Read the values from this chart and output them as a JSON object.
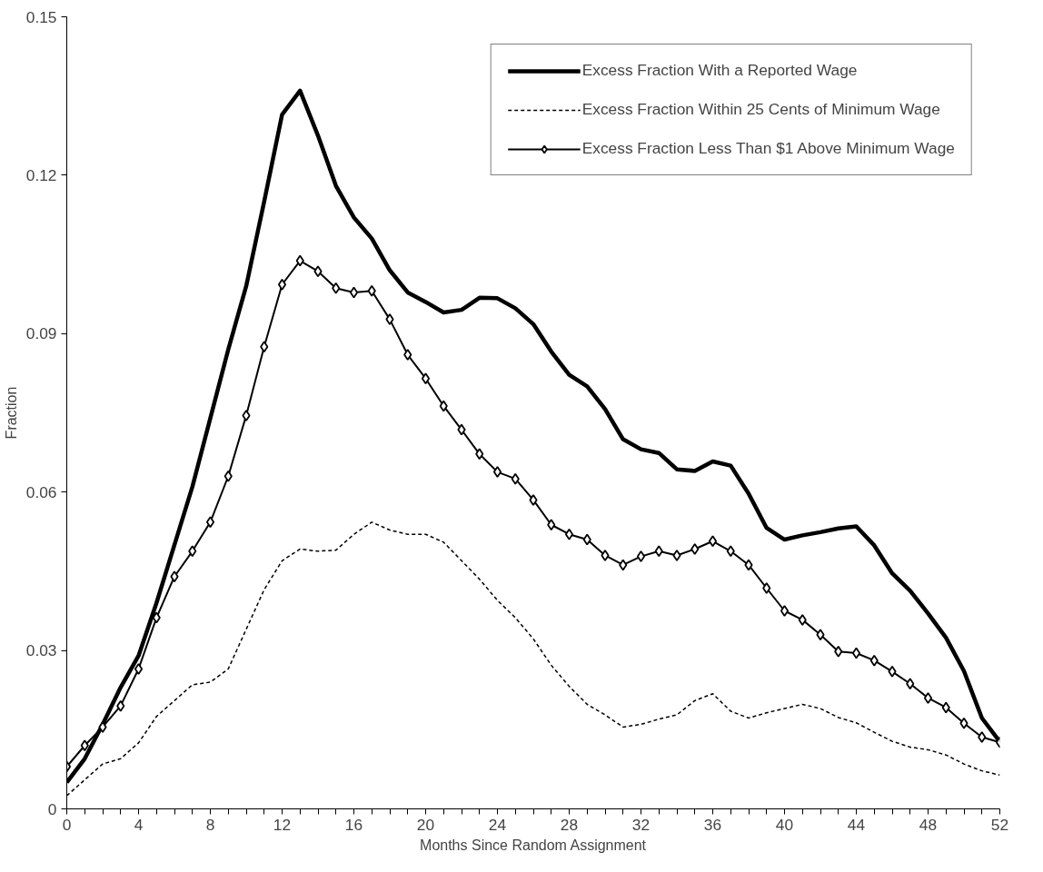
{
  "chart_data": {
    "type": "line",
    "xlabel": "Months Since Random Assignment",
    "ylabel": "Fraction",
    "x": [
      0,
      1,
      2,
      3,
      4,
      5,
      6,
      7,
      8,
      9,
      10,
      11,
      12,
      13,
      14,
      15,
      16,
      17,
      18,
      19,
      20,
      21,
      22,
      23,
      24,
      25,
      26,
      27,
      28,
      29,
      30,
      31,
      32,
      33,
      34,
      35,
      36,
      37,
      38,
      39,
      40,
      41,
      42,
      43,
      44,
      45,
      46,
      47,
      48,
      49,
      50,
      51,
      52
    ],
    "xlim": [
      0,
      52
    ],
    "xticks": [
      0,
      {
        "value": 1,
        "label": null
      },
      {
        "value": 2,
        "label": null
      },
      {
        "value": 3,
        "label": null
      },
      4,
      {
        "value": 5,
        "label": null
      },
      {
        "value": 6,
        "label": null
      },
      {
        "value": 7,
        "label": null
      },
      8,
      {
        "value": 9,
        "label": null
      },
      {
        "value": 10,
        "label": null
      },
      {
        "value": 11,
        "label": null
      },
      12,
      {
        "value": 13,
        "label": null
      },
      {
        "value": 14,
        "label": null
      },
      {
        "value": 15,
        "label": null
      },
      16,
      {
        "value": 17,
        "label": null
      },
      {
        "value": 18,
        "label": null
      },
      {
        "value": 19,
        "label": null
      },
      20,
      {
        "value": 21,
        "label": null
      },
      {
        "value": 22,
        "label": null
      },
      {
        "value": 23,
        "label": null
      },
      24,
      {
        "value": 25,
        "label": null
      },
      {
        "value": 26,
        "label": null
      },
      {
        "value": 27,
        "label": null
      },
      28,
      {
        "value": 29,
        "label": null
      },
      {
        "value": 30,
        "label": null
      },
      {
        "value": 31,
        "label": null
      },
      32,
      {
        "value": 33,
        "label": null
      },
      {
        "value": 34,
        "label": null
      },
      {
        "value": 35,
        "label": null
      },
      36,
      {
        "value": 37,
        "label": null
      },
      {
        "value": 38,
        "label": null
      },
      {
        "value": 39,
        "label": null
      },
      40,
      {
        "value": 41,
        "label": null
      },
      {
        "value": 42,
        "label": null
      },
      {
        "value": 43,
        "label": null
      },
      44,
      {
        "value": 45,
        "label": null
      },
      {
        "value": 46,
        "label": null
      },
      {
        "value": 47,
        "label": null
      },
      48,
      {
        "value": 49,
        "label": null
      },
      {
        "value": 50,
        "label": null
      },
      {
        "value": 51,
        "label": null
      },
      52
    ],
    "ylim": [
      0,
      0.15
    ],
    "yticks": [
      0,
      0.03,
      0.06,
      0.09,
      0.12,
      0.15
    ],
    "grid": false,
    "legend": "top right",
    "series": [
      {
        "name": "Excess Fraction With a Reported Wage",
        "color": "#000000",
        "line_style": "solid",
        "marker": "none",
        "values": [
          0.005,
          0.0095,
          0.016,
          0.023,
          0.029,
          0.039,
          0.05,
          0.061,
          0.074,
          0.087,
          0.099,
          0.115,
          0.1315,
          0.136,
          0.1275,
          0.118,
          0.112,
          0.108,
          0.102,
          0.0978,
          0.096,
          0.094,
          0.0945,
          0.0968,
          0.0967,
          0.0948,
          0.0918,
          0.0866,
          0.0822,
          0.08,
          0.0757,
          0.07,
          0.0681,
          0.0674,
          0.0643,
          0.064,
          0.0658,
          0.065,
          0.0597,
          0.0532,
          0.051,
          0.0518,
          0.0524,
          0.0531,
          0.0535,
          0.0499,
          0.0446,
          0.0413,
          0.037,
          0.0324,
          0.0261,
          0.0172,
          0.0127
        ]
      },
      {
        "name": "Excess Fraction Within 25 Cents of Minimum Wage",
        "color": "#000000",
        "line_style": "dashed",
        "marker": "none",
        "values": [
          0.0025,
          0.0055,
          0.0085,
          0.0095,
          0.0125,
          0.0175,
          0.0205,
          0.0235,
          0.024,
          0.0265,
          0.034,
          0.0415,
          0.047,
          0.0492,
          0.0488,
          0.049,
          0.052,
          0.0543,
          0.0528,
          0.052,
          0.052,
          0.0505,
          0.047,
          0.0435,
          0.0395,
          0.0362,
          0.0322,
          0.0272,
          0.0232,
          0.0198,
          0.0178,
          0.0155,
          0.016,
          0.017,
          0.0178,
          0.0205,
          0.0218,
          0.0185,
          0.0172,
          0.0182,
          0.019,
          0.0198,
          0.019,
          0.0173,
          0.0163,
          0.0145,
          0.0128,
          0.0117,
          0.0112,
          0.0102,
          0.0085,
          0.0072,
          0.0064
        ]
      },
      {
        "name": "Excess Fraction Less Than $1 Above Minimum Wage",
        "color": "#000000",
        "line_style": "solid",
        "marker": "diamond",
        "values": [
          0.008,
          0.012,
          0.0155,
          0.0195,
          0.0265,
          0.0362,
          0.044,
          0.0488,
          0.0543,
          0.063,
          0.0745,
          0.0875,
          0.0993,
          0.1038,
          0.1018,
          0.0986,
          0.0978,
          0.0981,
          0.0927,
          0.086,
          0.0815,
          0.0763,
          0.0718,
          0.0672,
          0.0638,
          0.0625,
          0.0585,
          0.0538,
          0.052,
          0.051,
          0.048,
          0.0462,
          0.0478,
          0.0488,
          0.048,
          0.0492,
          0.0507,
          0.0488,
          0.0462,
          0.0418,
          0.0375,
          0.0358,
          0.033,
          0.0298,
          0.0295,
          0.0281,
          0.026,
          0.0237,
          0.021,
          0.0192,
          0.0162,
          0.0136,
          0.0126
        ]
      }
    ]
  }
}
